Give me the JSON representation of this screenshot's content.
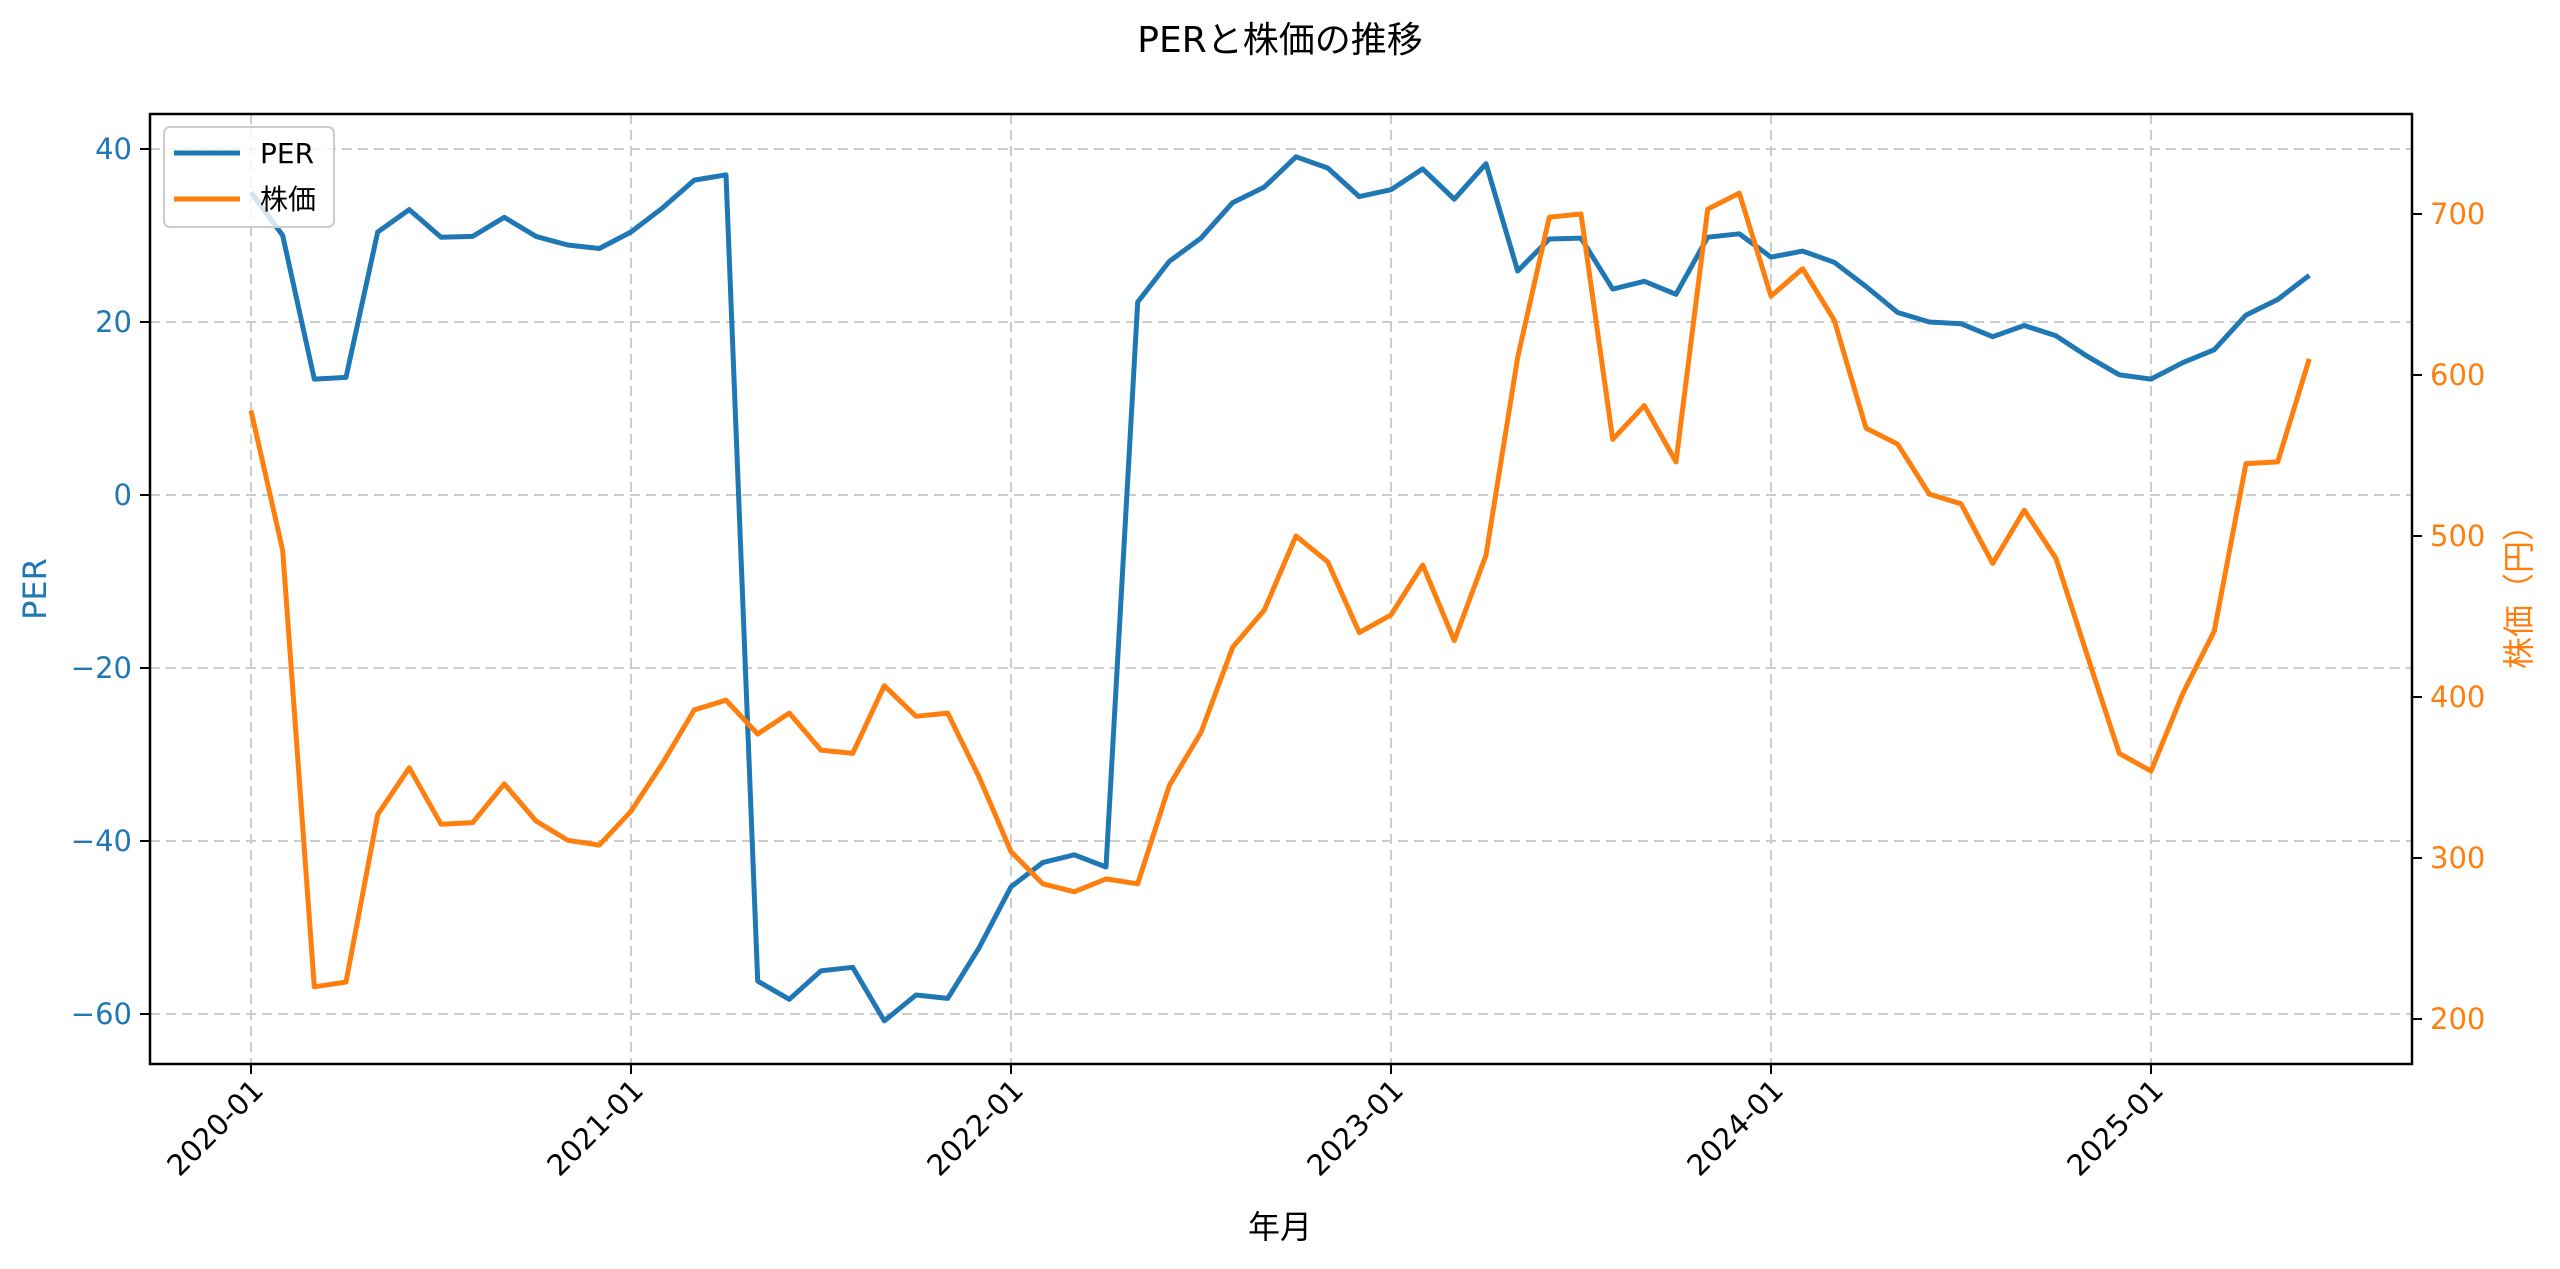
{
  "chart_data": {
    "type": "line",
    "title": "PERと株価の推移",
    "xlabel": "年月",
    "ylabel_left": "PER",
    "ylabel_right": "株価（円）",
    "ylim_left": [
      -65.5,
      44
    ],
    "ylim_right": [
      172,
      761
    ],
    "yticks_left": [
      -60,
      -40,
      -20,
      0,
      20,
      40
    ],
    "yticks_right": [
      200,
      300,
      400,
      500,
      600,
      700
    ],
    "xticks": [
      "2020-01",
      "2021-01",
      "2022-01",
      "2023-01",
      "2024-01",
      "2025-01"
    ],
    "grid": true,
    "legend_position": "upper left",
    "x": [
      "2020-01",
      "2020-02",
      "2020-03",
      "2020-04",
      "2020-05",
      "2020-06",
      "2020-07",
      "2020-08",
      "2020-09",
      "2020-10",
      "2020-11",
      "2020-12",
      "2021-01",
      "2021-02",
      "2021-03",
      "2021-04",
      "2021-05",
      "2021-06",
      "2021-07",
      "2021-08",
      "2021-09",
      "2021-10",
      "2021-11",
      "2021-12",
      "2022-01",
      "2022-02",
      "2022-03",
      "2022-04",
      "2022-05",
      "2022-06",
      "2022-07",
      "2022-08",
      "2022-09",
      "2022-10",
      "2022-11",
      "2022-12",
      "2023-01",
      "2023-02",
      "2023-03",
      "2023-04",
      "2023-05",
      "2023-06",
      "2023-07",
      "2023-08",
      "2023-09",
      "2023-10",
      "2023-11",
      "2023-12",
      "2024-01",
      "2024-02",
      "2024-03",
      "2024-04",
      "2024-05",
      "2024-06",
      "2024-07",
      "2024-08",
      "2024-09",
      "2024-10",
      "2024-11",
      "2024-12",
      "2025-01",
      "2025-02",
      "2025-03",
      "2025-04",
      "2025-05",
      "2025-06"
    ],
    "series": [
      {
        "name": "PER",
        "axis": "left",
        "color": "#1f77b4",
        "values": [
          35.0,
          30.0,
          13.4,
          13.6,
          30.4,
          33.0,
          29.8,
          29.9,
          32.1,
          29.9,
          28.9,
          28.5,
          30.4,
          33.2,
          36.4,
          37.0,
          -56.2,
          -58.3,
          -55.0,
          -54.6,
          -60.8,
          -57.8,
          -58.2,
          -52.3,
          -45.3,
          -42.5,
          -41.6,
          -43.0,
          22.3,
          27.0,
          29.7,
          33.8,
          35.6,
          39.1,
          37.8,
          34.5,
          35.3,
          37.7,
          34.2,
          38.3,
          25.9,
          29.6,
          29.7,
          23.8,
          24.7,
          23.2,
          29.8,
          30.2,
          27.5,
          28.2,
          26.9,
          24.1,
          21.1,
          20.0,
          19.8,
          18.3,
          19.6,
          18.4,
          16.0,
          13.9,
          13.4,
          15.3,
          16.8,
          20.8,
          22.6,
          25.4
        ]
      },
      {
        "name": "株価",
        "axis": "right",
        "color": "#ff7f0e",
        "values": [
          578,
          491,
          220,
          223,
          327,
          356,
          321,
          322,
          346,
          323,
          311,
          308,
          329,
          359,
          392,
          398,
          377,
          390,
          367,
          365,
          407,
          388,
          390,
          350,
          304,
          284,
          279,
          287,
          284,
          345,
          378,
          431,
          454,
          500,
          484,
          440,
          451,
          482,
          435,
          488,
          611,
          698,
          700,
          560,
          581,
          546,
          703,
          713,
          649,
          666,
          634,
          567,
          557,
          526,
          520,
          483,
          516,
          486,
          425,
          365,
          354,
          402,
          441,
          545,
          546,
          610
        ]
      }
    ]
  },
  "legend": {
    "items": [
      {
        "label": "PER",
        "color": "#1f77b4"
      },
      {
        "label": "株価",
        "color": "#ff7f0e"
      }
    ]
  },
  "colors": {
    "left_axis": "#1f77b4",
    "right_axis": "#ff7f0e",
    "grid": "#cccccc",
    "frame": "#000000"
  }
}
